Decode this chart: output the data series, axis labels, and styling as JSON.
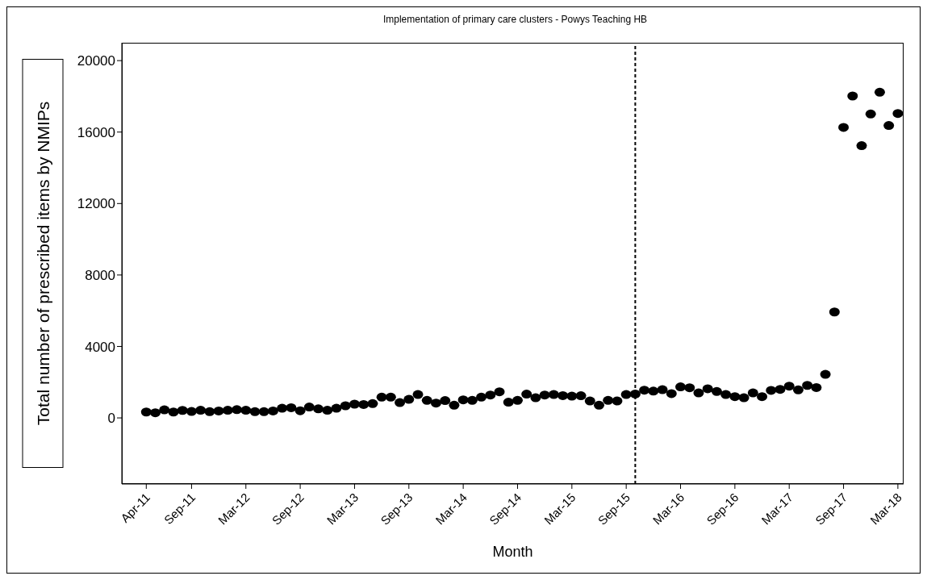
{
  "chart_data": {
    "type": "scatter",
    "title": "Implementation of primary care clusters - Powys Teaching HB",
    "xlabel": "Month",
    "ylabel": "Total number of prescribed items by NMIPs",
    "x": [
      "2011-04",
      "2011-05",
      "2011-06",
      "2011-07",
      "2011-08",
      "2011-09",
      "2011-10",
      "2011-11",
      "2011-12",
      "2012-01",
      "2012-02",
      "2012-03",
      "2012-04",
      "2012-05",
      "2012-06",
      "2012-07",
      "2012-08",
      "2012-09",
      "2012-10",
      "2012-11",
      "2012-12",
      "2013-01",
      "2013-02",
      "2013-03",
      "2013-04",
      "2013-05",
      "2013-06",
      "2013-07",
      "2013-08",
      "2013-09",
      "2013-10",
      "2013-11",
      "2013-12",
      "2014-01",
      "2014-02",
      "2014-03",
      "2014-04",
      "2014-05",
      "2014-06",
      "2014-07",
      "2014-08",
      "2014-09",
      "2014-10",
      "2014-11",
      "2014-12",
      "2015-01",
      "2015-02",
      "2015-03",
      "2015-04",
      "2015-05",
      "2015-06",
      "2015-07",
      "2015-08",
      "2015-09",
      "2015-10",
      "2015-11",
      "2015-12",
      "2016-01",
      "2016-02",
      "2016-03",
      "2016-04",
      "2016-05",
      "2016-06",
      "2016-07",
      "2016-08",
      "2016-09",
      "2016-10",
      "2016-11",
      "2016-12",
      "2017-01",
      "2017-02",
      "2017-03",
      "2017-04",
      "2017-05",
      "2017-06",
      "2017-07",
      "2017-08",
      "2017-09",
      "2017-10",
      "2017-11",
      "2017-12",
      "2018-01",
      "2018-02",
      "2018-03"
    ],
    "values": [
      330,
      290,
      450,
      330,
      420,
      360,
      430,
      350,
      390,
      430,
      460,
      430,
      350,
      350,
      390,
      540,
      570,
      400,
      610,
      510,
      430,
      540,
      680,
      770,
      750,
      800,
      1160,
      1160,
      860,
      1040,
      1310,
      980,
      830,
      970,
      710,
      1010,
      980,
      1160,
      1280,
      1460,
      880,
      980,
      1330,
      1130,
      1280,
      1310,
      1250,
      1220,
      1240,
      950,
      710,
      980,
      950,
      1310,
      1340,
      1550,
      1500,
      1580,
      1360,
      1740,
      1690,
      1400,
      1630,
      1480,
      1310,
      1190,
      1130,
      1400,
      1190,
      1540,
      1600,
      1780,
      1570,
      1820,
      1700,
      2440,
      5930,
      16260,
      18020,
      15240,
      17010,
      18230,
      16370,
      17040
    ],
    "color": "#000000",
    "marker": "circle",
    "xlim": [
      "2011-01-10",
      "2018-03-20"
    ],
    "xticks": [
      {
        "value": "2011-04",
        "label": "Apr-11"
      },
      {
        "value": "2011-09",
        "label": "Sep-11"
      },
      {
        "value": "2012-03",
        "label": "Mar-12"
      },
      {
        "value": "2012-09",
        "label": "Sep-12"
      },
      {
        "value": "2013-03",
        "label": "Mar-13"
      },
      {
        "value": "2013-09",
        "label": "Sep-13"
      },
      {
        "value": "2014-03",
        "label": "Mar-14"
      },
      {
        "value": "2014-09",
        "label": "Sep-14"
      },
      {
        "value": "2015-03",
        "label": "Mar-15"
      },
      {
        "value": "2015-09",
        "label": "Sep-15"
      },
      {
        "value": "2016-03",
        "label": "Mar-16"
      },
      {
        "value": "2016-09",
        "label": "Sep-16"
      },
      {
        "value": "2017-03",
        "label": "Mar-17"
      },
      {
        "value": "2017-09",
        "label": "Sep-17"
      },
      {
        "value": "2018-03",
        "label": "Mar-18"
      }
    ],
    "ylim": [
      -3700,
      21000
    ],
    "yticks": [
      0,
      4000,
      8000,
      12000,
      16000,
      20000
    ],
    "ref_lines": [
      {
        "axis": "x",
        "value": "2015-10",
        "color": "#000000",
        "line_style": "dashed"
      }
    ],
    "grid": false,
    "legend": false
  }
}
